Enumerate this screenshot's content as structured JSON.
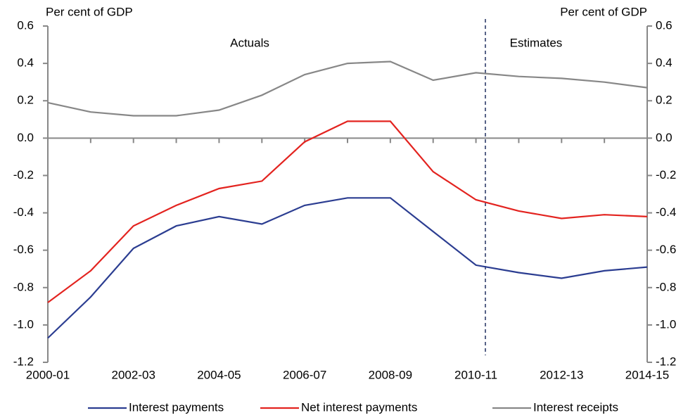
{
  "chart_data": {
    "type": "line",
    "y_label": "Per cent of GDP",
    "y2_label": "Per cent of GDP",
    "annotations": [
      "Actuals",
      "Estimates"
    ],
    "categories": [
      "2000-01",
      null,
      "2002-03",
      null,
      "2004-05",
      null,
      "2006-07",
      null,
      "2008-09",
      null,
      "2010-11",
      null,
      "2012-13",
      null,
      "2014-15"
    ],
    "series": [
      {
        "name": "Interest payments",
        "color": "#2b3d91",
        "values": [
          -1.07,
          -0.85,
          -0.59,
          -0.47,
          -0.42,
          -0.46,
          -0.36,
          -0.32,
          -0.32,
          -0.5,
          -0.68,
          -0.72,
          -0.75,
          -0.71,
          -0.69
        ]
      },
      {
        "name": "Net interest payments",
        "color": "#e3231f",
        "values": [
          -0.88,
          -0.71,
          -0.47,
          -0.36,
          -0.27,
          -0.23,
          -0.02,
          0.09,
          0.09,
          -0.18,
          -0.33,
          -0.39,
          -0.43,
          -0.41,
          -0.42
        ]
      },
      {
        "name": "Interest receipts",
        "color": "#878787",
        "values": [
          0.19,
          0.14,
          0.12,
          0.12,
          0.15,
          0.23,
          0.34,
          0.4,
          0.41,
          0.31,
          0.35,
          0.33,
          0.32,
          0.3,
          0.27
        ]
      }
    ],
    "ylim": [
      -1.2,
      0.6
    ],
    "yticks": [
      -1.2,
      {
        "value": -1,
        "label": "-1.0"
      },
      -0.8,
      -0.6,
      -0.4,
      -0.2,
      {
        "value": 0,
        "label": "0.0"
      },
      0.2,
      0.4,
      0.6
    ],
    "y2lim": [
      -1.2,
      0.6
    ],
    "y2ticks": [
      -1.2,
      {
        "value": -1,
        "label": "-1.0"
      },
      -0.8,
      -0.6,
      -0.4,
      -0.2,
      {
        "value": 0,
        "label": "0.0"
      },
      0.2,
      0.4,
      0.6
    ]
  }
}
